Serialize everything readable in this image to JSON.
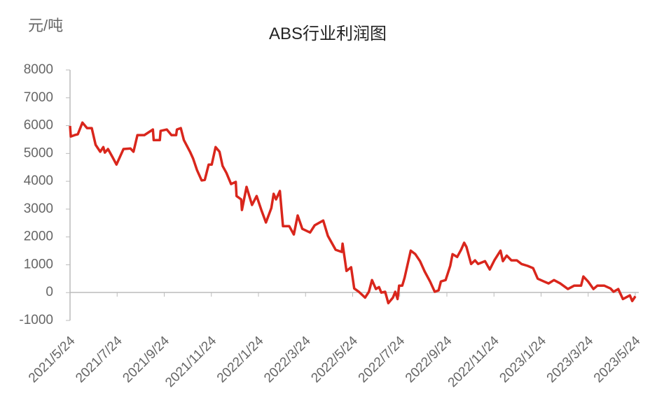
{
  "chart_data": {
    "type": "line",
    "title": "ABS行业利润图",
    "ylabel": "元/吨",
    "xlabel": "",
    "ylim": [
      -1000,
      8000
    ],
    "yticks": [
      "8000",
      "7000",
      "6000",
      "5000",
      "4000",
      "3000",
      "2000",
      "1000",
      "0",
      "-1000"
    ],
    "xlim": [
      "2021-05-24",
      "2023-05-24"
    ],
    "xticks": [
      "2021/5/24",
      "2021/7/24",
      "2021/9/24",
      "2021/11/24",
      "2022/1/24",
      "2022/3/24",
      "2022/5/24",
      "2022/7/24",
      "2022/9/24",
      "2022/11/24",
      "2023/1/24",
      "2023/3/24",
      "2023/5/24"
    ],
    "grid": false,
    "line_color": "#d9261c",
    "series": [
      {
        "points": [
          [
            "2021-05-24",
            5990
          ],
          [
            "2021-05-25",
            5610
          ],
          [
            "2021-05-30",
            5660
          ],
          [
            "2021-06-03",
            5690
          ],
          [
            "2021-06-09",
            6110
          ],
          [
            "2021-06-15",
            5910
          ],
          [
            "2021-06-21",
            5910
          ],
          [
            "2021-06-26",
            5310
          ],
          [
            "2021-07-02",
            5060
          ],
          [
            "2021-07-06",
            5230
          ],
          [
            "2021-07-08",
            5030
          ],
          [
            "2021-07-12",
            5160
          ],
          [
            "2021-07-18",
            4860
          ],
          [
            "2021-07-23",
            4600
          ],
          [
            "2021-08-01",
            5160
          ],
          [
            "2021-08-10",
            5180
          ],
          [
            "2021-08-14",
            5060
          ],
          [
            "2021-08-19",
            5660
          ],
          [
            "2021-08-28",
            5660
          ],
          [
            "2021-09-08",
            5860
          ],
          [
            "2021-09-09",
            5480
          ],
          [
            "2021-09-17",
            5480
          ],
          [
            "2021-09-18",
            5810
          ],
          [
            "2021-09-26",
            5860
          ],
          [
            "2021-10-02",
            5660
          ],
          [
            "2021-10-08",
            5660
          ],
          [
            "2021-10-09",
            5860
          ],
          [
            "2021-10-14",
            5910
          ],
          [
            "2021-10-18",
            5480
          ],
          [
            "2021-10-26",
            5060
          ],
          [
            "2021-10-30",
            4810
          ],
          [
            "2021-11-04",
            4400
          ],
          [
            "2021-11-10",
            4030
          ],
          [
            "2021-11-14",
            4050
          ],
          [
            "2021-11-19",
            4600
          ],
          [
            "2021-11-23",
            4600
          ],
          [
            "2021-11-28",
            5230
          ],
          [
            "2021-12-03",
            5060
          ],
          [
            "2021-12-07",
            4550
          ],
          [
            "2021-12-12",
            4300
          ],
          [
            "2021-12-18",
            3900
          ],
          [
            "2021-12-24",
            3980
          ],
          [
            "2021-12-25",
            3470
          ],
          [
            "2021-12-31",
            3350
          ],
          [
            "2022-01-01",
            2970
          ],
          [
            "2022-01-07",
            3800
          ],
          [
            "2022-01-14",
            3150
          ],
          [
            "2022-01-20",
            3470
          ],
          [
            "2022-01-26",
            2970
          ],
          [
            "2022-02-01",
            2520
          ],
          [
            "2022-02-08",
            3040
          ],
          [
            "2022-02-11",
            3550
          ],
          [
            "2022-02-14",
            3350
          ],
          [
            "2022-02-19",
            3650
          ],
          [
            "2022-02-23",
            2390
          ],
          [
            "2022-03-03",
            2390
          ],
          [
            "2022-03-09",
            2090
          ],
          [
            "2022-03-14",
            2770
          ],
          [
            "2022-03-20",
            2290
          ],
          [
            "2022-03-30",
            2160
          ],
          [
            "2022-04-05",
            2420
          ],
          [
            "2022-04-16",
            2590
          ],
          [
            "2022-04-22",
            2040
          ],
          [
            "2022-05-02",
            1540
          ],
          [
            "2022-05-10",
            1460
          ],
          [
            "2022-05-11",
            1760
          ],
          [
            "2022-05-16",
            780
          ],
          [
            "2022-05-22",
            910
          ],
          [
            "2022-05-26",
            150
          ],
          [
            "2022-06-01",
            30
          ],
          [
            "2022-06-09",
            -180
          ],
          [
            "2022-06-14",
            30
          ],
          [
            "2022-06-18",
            450
          ],
          [
            "2022-06-23",
            130
          ],
          [
            "2022-06-27",
            200
          ],
          [
            "2022-06-30",
            0
          ],
          [
            "2022-07-05",
            30
          ],
          [
            "2022-07-09",
            -380
          ],
          [
            "2022-07-15",
            -180
          ],
          [
            "2022-07-18",
            30
          ],
          [
            "2022-07-21",
            -230
          ],
          [
            "2022-07-23",
            250
          ],
          [
            "2022-07-27",
            250
          ],
          [
            "2022-07-30",
            530
          ],
          [
            "2022-08-07",
            1510
          ],
          [
            "2022-08-13",
            1380
          ],
          [
            "2022-08-19",
            1130
          ],
          [
            "2022-08-25",
            760
          ],
          [
            "2022-09-01",
            400
          ],
          [
            "2022-09-07",
            30
          ],
          [
            "2022-09-12",
            80
          ],
          [
            "2022-09-15",
            400
          ],
          [
            "2022-09-21",
            450
          ],
          [
            "2022-09-27",
            960
          ],
          [
            "2022-09-30",
            1380
          ],
          [
            "2022-10-06",
            1280
          ],
          [
            "2022-10-11",
            1540
          ],
          [
            "2022-10-15",
            1790
          ],
          [
            "2022-10-18",
            1640
          ],
          [
            "2022-10-24",
            1030
          ],
          [
            "2022-10-29",
            1160
          ],
          [
            "2022-11-02",
            1030
          ],
          [
            "2022-11-11",
            1130
          ],
          [
            "2022-11-17",
            830
          ],
          [
            "2022-11-23",
            1160
          ],
          [
            "2022-12-01",
            1510
          ],
          [
            "2022-12-04",
            1130
          ],
          [
            "2022-12-09",
            1330
          ],
          [
            "2022-12-15",
            1160
          ],
          [
            "2022-12-22",
            1160
          ],
          [
            "2022-12-28",
            1030
          ],
          [
            "2023-01-05",
            960
          ],
          [
            "2023-01-12",
            880
          ],
          [
            "2023-01-18",
            500
          ],
          [
            "2023-01-26",
            400
          ],
          [
            "2023-02-01",
            330
          ],
          [
            "2023-02-08",
            450
          ],
          [
            "2023-02-16",
            330
          ],
          [
            "2023-02-26",
            130
          ],
          [
            "2023-03-06",
            250
          ],
          [
            "2023-03-15",
            250
          ],
          [
            "2023-03-18",
            580
          ],
          [
            "2023-03-24",
            400
          ],
          [
            "2023-03-31",
            130
          ],
          [
            "2023-04-05",
            250
          ],
          [
            "2023-04-14",
            250
          ],
          [
            "2023-04-22",
            150
          ],
          [
            "2023-04-26",
            30
          ],
          [
            "2023-05-02",
            130
          ],
          [
            "2023-05-08",
            -230
          ],
          [
            "2023-05-17",
            -100
          ],
          [
            "2023-05-20",
            -300
          ],
          [
            "2023-05-23",
            -180
          ],
          [
            "2023-05-24",
            -130
          ]
        ]
      }
    ]
  }
}
